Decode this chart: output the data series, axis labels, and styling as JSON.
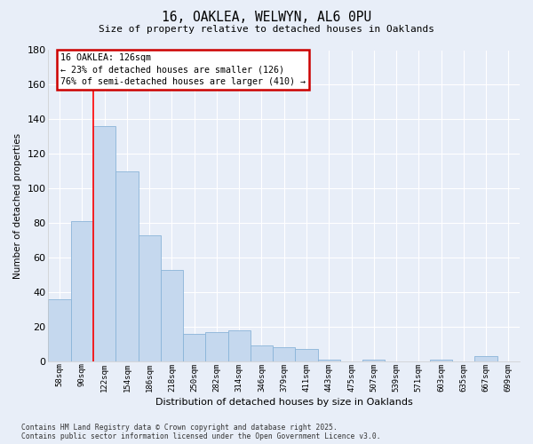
{
  "title": "16, OAKLEA, WELWYN, AL6 0PU",
  "subtitle": "Size of property relative to detached houses in Oaklands",
  "xlabel": "Distribution of detached houses by size in Oaklands",
  "ylabel": "Number of detached properties",
  "bar_color": "#c5d8ee",
  "bar_edge_color": "#8ab4d8",
  "bg_color": "#e8eef8",
  "grid_color": "#ffffff",
  "categories": [
    "58sqm",
    "90sqm",
    "122sqm",
    "154sqm",
    "186sqm",
    "218sqm",
    "250sqm",
    "282sqm",
    "314sqm",
    "346sqm",
    "379sqm",
    "411sqm",
    "443sqm",
    "475sqm",
    "507sqm",
    "539sqm",
    "571sqm",
    "603sqm",
    "635sqm",
    "667sqm",
    "699sqm"
  ],
  "values": [
    36,
    81,
    136,
    110,
    73,
    53,
    16,
    17,
    18,
    9,
    8,
    7,
    1,
    0,
    1,
    0,
    0,
    1,
    0,
    3,
    0
  ],
  "ylim": [
    0,
    180
  ],
  "yticks": [
    0,
    20,
    40,
    60,
    80,
    100,
    120,
    140,
    160,
    180
  ],
  "annotation_line1": "16 OAKLEA: 126sqm",
  "annotation_line2": "← 23% of detached houses are smaller (126)",
  "annotation_line3": "76% of semi-detached houses are larger (410) →",
  "vline_x": 1.5,
  "annotation_box_facecolor": "#ffffff",
  "annotation_box_edgecolor": "#cc0000",
  "footer_line1": "Contains HM Land Registry data © Crown copyright and database right 2025.",
  "footer_line2": "Contains public sector information licensed under the Open Government Licence v3.0."
}
